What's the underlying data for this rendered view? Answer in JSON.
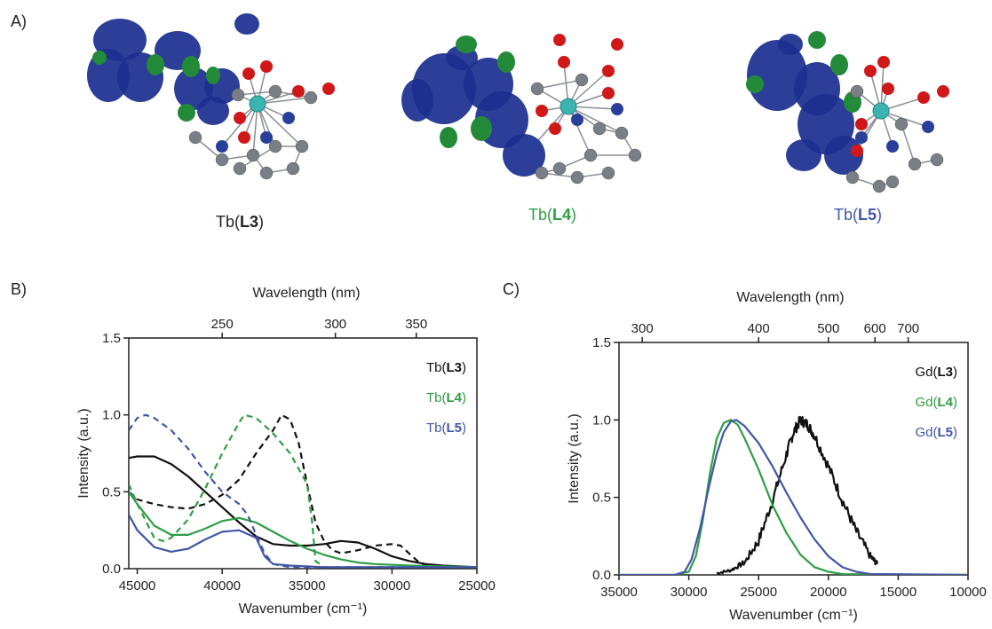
{
  "panels": {
    "a": "A)",
    "b": "B)",
    "c": "C)"
  },
  "complexes": [
    {
      "metal": "Tb(",
      "ligand": "L3",
      "close": ")",
      "color": "#222222"
    },
    {
      "metal": "Tb(",
      "ligand": "L4",
      "close": ")",
      "color": "#2e9e44"
    },
    {
      "metal": "Tb(",
      "ligand": "L5",
      "close": ")",
      "color": "#4256a8"
    }
  ],
  "colors": {
    "L3": "#111111",
    "L4": "#2e9e44",
    "L5": "#4256a8",
    "orbital_blue": "#1c2f8f",
    "orbital_green": "#238a3a",
    "teal": "#3bb3b0",
    "red": "#d01818",
    "gray": "#7a7f86"
  },
  "chart_data": [
    {
      "type": "line",
      "panel": "B)",
      "xlabel": "Wavenumber (cm⁻¹)",
      "x2label": "Wavelength (nm)",
      "ylabel": "Intensity (a.u.)",
      "xlim": [
        45500,
        25000
      ],
      "ylim": [
        0,
        1.5
      ],
      "xticks": [
        45000,
        40000,
        35000,
        30000,
        25000
      ],
      "yticks": [
        0.0,
        0.5,
        1.0,
        1.5
      ],
      "x2ticks": [
        250,
        300,
        350
      ],
      "legend": "top-right",
      "series": [
        {
          "name": "Tb(L3)",
          "color": "#111111",
          "dash": false,
          "points": [
            [
              45500,
              0.72
            ],
            [
              45000,
              0.73
            ],
            [
              44000,
              0.73
            ],
            [
              43000,
              0.68
            ],
            [
              42000,
              0.6
            ],
            [
              41000,
              0.5
            ],
            [
              40000,
              0.4
            ],
            [
              39000,
              0.3
            ],
            [
              38000,
              0.21
            ],
            [
              37000,
              0.16
            ],
            [
              36000,
              0.15
            ],
            [
              35000,
              0.15
            ],
            [
              34000,
              0.16
            ],
            [
              33000,
              0.18
            ],
            [
              32000,
              0.17
            ],
            [
              31000,
              0.13
            ],
            [
              30000,
              0.08
            ],
            [
              29000,
              0.05
            ],
            [
              28000,
              0.03
            ],
            [
              27000,
              0.02
            ],
            [
              25000,
              0.01
            ]
          ]
        },
        {
          "name": "Tb(L3)",
          "color": "#111111",
          "dash": true,
          "points": [
            [
              45500,
              0.5
            ],
            [
              45000,
              0.45
            ],
            [
              44000,
              0.42
            ],
            [
              43000,
              0.4
            ],
            [
              42000,
              0.39
            ],
            [
              41000,
              0.42
            ],
            [
              40000,
              0.48
            ],
            [
              39000,
              0.58
            ],
            [
              38000,
              0.75
            ],
            [
              37000,
              0.9
            ],
            [
              36500,
              1.0
            ],
            [
              36000,
              0.97
            ],
            [
              35500,
              0.82
            ],
            [
              35000,
              0.55
            ],
            [
              34500,
              0.3
            ],
            [
              34000,
              0.18
            ],
            [
              33500,
              0.12
            ],
            [
              33000,
              0.1
            ],
            [
              32000,
              0.12
            ],
            [
              31000,
              0.15
            ],
            [
              30000,
              0.16
            ],
            [
              29500,
              0.15
            ],
            [
              29000,
              0.1
            ],
            [
              28500,
              0.05
            ],
            [
              28000,
              0.02
            ],
            [
              27000,
              0.01
            ],
            [
              25000,
              0.01
            ]
          ]
        },
        {
          "name": "Tb(L4)",
          "color": "#2e9e44",
          "dash": false,
          "points": [
            [
              45500,
              0.5
            ],
            [
              45000,
              0.42
            ],
            [
              44000,
              0.28
            ],
            [
              43000,
              0.22
            ],
            [
              42000,
              0.22
            ],
            [
              41000,
              0.26
            ],
            [
              40000,
              0.31
            ],
            [
              39000,
              0.33
            ],
            [
              38000,
              0.3
            ],
            [
              37000,
              0.24
            ],
            [
              36000,
              0.18
            ],
            [
              35000,
              0.13
            ],
            [
              34000,
              0.09
            ],
            [
              33000,
              0.06
            ],
            [
              32000,
              0.04
            ],
            [
              31000,
              0.03
            ],
            [
              29000,
              0.02
            ],
            [
              25000,
              0.01
            ]
          ]
        },
        {
          "name": "Tb(L4)",
          "color": "#2e9e44",
          "dash": true,
          "points": [
            [
              45500,
              0.55
            ],
            [
              45000,
              0.42
            ],
            [
              44000,
              0.2
            ],
            [
              43500,
              0.18
            ],
            [
              43000,
              0.2
            ],
            [
              42000,
              0.32
            ],
            [
              41000,
              0.52
            ],
            [
              40000,
              0.75
            ],
            [
              39000,
              0.95
            ],
            [
              38700,
              1.0
            ],
            [
              38000,
              0.98
            ],
            [
              37000,
              0.88
            ],
            [
              36000,
              0.75
            ],
            [
              35000,
              0.55
            ],
            [
              34700,
              0.3
            ],
            [
              34500,
              0.05
            ],
            [
              34000,
              0.01
            ],
            [
              25000,
              0.01
            ]
          ]
        },
        {
          "name": "Tb(L5)",
          "color": "#4256a8",
          "dash": false,
          "points": [
            [
              45500,
              0.35
            ],
            [
              45000,
              0.25
            ],
            [
              44000,
              0.14
            ],
            [
              43000,
              0.11
            ],
            [
              42000,
              0.13
            ],
            [
              41000,
              0.19
            ],
            [
              40000,
              0.24
            ],
            [
              39000,
              0.25
            ],
            [
              38000,
              0.2
            ],
            [
              37500,
              0.08
            ],
            [
              37000,
              0.03
            ],
            [
              36000,
              0.02
            ],
            [
              34000,
              0.01
            ],
            [
              25000,
              0.01
            ]
          ]
        },
        {
          "name": "Tb(L5)",
          "color": "#4256a8",
          "dash": true,
          "points": [
            [
              45500,
              0.9
            ],
            [
              45000,
              0.98
            ],
            [
              44500,
              1.0
            ],
            [
              44000,
              0.98
            ],
            [
              43000,
              0.9
            ],
            [
              42000,
              0.78
            ],
            [
              41000,
              0.63
            ],
            [
              40000,
              0.5
            ],
            [
              39000,
              0.42
            ],
            [
              38500,
              0.35
            ],
            [
              38000,
              0.22
            ],
            [
              37500,
              0.1
            ],
            [
              37000,
              0.03
            ],
            [
              36000,
              0.01
            ],
            [
              25000,
              0.01
            ]
          ]
        }
      ],
      "legend_entries": [
        {
          "metal": "Tb(",
          "ligand": "L3",
          "close": ")",
          "color": "#111111"
        },
        {
          "metal": "Tb(",
          "ligand": "L4",
          "close": ")",
          "color": "#2e9e44"
        },
        {
          "metal": "Tb(",
          "ligand": "L5",
          "close": ")",
          "color": "#4256a8"
        }
      ]
    },
    {
      "type": "line",
      "panel": "C)",
      "xlabel": "Wavenumber (cm⁻¹)",
      "x2label": "Wavelength (nm)",
      "ylabel": "Intensity (a.u.)",
      "xlim": [
        35000,
        10000
      ],
      "ylim": [
        0,
        1.5
      ],
      "xticks": [
        35000,
        30000,
        25000,
        20000,
        15000,
        10000
      ],
      "yticks": [
        0.0,
        0.5,
        1.0,
        1.5
      ],
      "x2ticks": [
        300,
        400,
        500,
        600,
        700
      ],
      "legend": "top-right",
      "series": [
        {
          "name": "Gd(L3)",
          "color": "#111111",
          "dash": false,
          "noisy": true,
          "points": [
            [
              28000,
              0.01
            ],
            [
              27000,
              0.03
            ],
            [
              26000,
              0.08
            ],
            [
              25000,
              0.22
            ],
            [
              24000,
              0.48
            ],
            [
              23000,
              0.78
            ],
            [
              22500,
              0.92
            ],
            [
              22000,
              1.0
            ],
            [
              21500,
              0.97
            ],
            [
              21000,
              0.9
            ],
            [
              20000,
              0.7
            ],
            [
              19000,
              0.48
            ],
            [
              18000,
              0.28
            ],
            [
              17000,
              0.12
            ],
            [
              16500,
              0.07
            ]
          ]
        },
        {
          "name": "Gd(L4)",
          "color": "#2e9e44",
          "dash": false,
          "points": [
            [
              35000,
              0.0
            ],
            [
              31000,
              0.0
            ],
            [
              30000,
              0.02
            ],
            [
              29500,
              0.12
            ],
            [
              29000,
              0.35
            ],
            [
              28500,
              0.65
            ],
            [
              28000,
              0.88
            ],
            [
              27500,
              0.98
            ],
            [
              27000,
              1.0
            ],
            [
              26500,
              0.97
            ],
            [
              26000,
              0.88
            ],
            [
              25000,
              0.68
            ],
            [
              24000,
              0.45
            ],
            [
              23000,
              0.27
            ],
            [
              22000,
              0.13
            ],
            [
              21000,
              0.05
            ],
            [
              20000,
              0.02
            ],
            [
              19000,
              0.005
            ],
            [
              10000,
              0.0
            ]
          ]
        },
        {
          "name": "Gd(L5)",
          "color": "#4256a8",
          "dash": false,
          "points": [
            [
              35000,
              0.0
            ],
            [
              31000,
              0.0
            ],
            [
              30300,
              0.02
            ],
            [
              29800,
              0.1
            ],
            [
              29200,
              0.3
            ],
            [
              28600,
              0.55
            ],
            [
              28000,
              0.78
            ],
            [
              27500,
              0.92
            ],
            [
              27000,
              0.99
            ],
            [
              26600,
              1.0
            ],
            [
              26000,
              0.96
            ],
            [
              25000,
              0.85
            ],
            [
              24000,
              0.7
            ],
            [
              23000,
              0.53
            ],
            [
              22000,
              0.37
            ],
            [
              21000,
              0.23
            ],
            [
              20000,
              0.12
            ],
            [
              19000,
              0.05
            ],
            [
              18000,
              0.02
            ],
            [
              17000,
              0.005
            ],
            [
              10000,
              0.0
            ]
          ]
        }
      ],
      "legend_entries": [
        {
          "metal": "Gd(",
          "ligand": "L3",
          "close": ")",
          "color": "#111111"
        },
        {
          "metal": "Gd(",
          "ligand": "L4",
          "close": ")",
          "color": "#2e9e44"
        },
        {
          "metal": "Gd(",
          "ligand": "L5",
          "close": ")",
          "color": "#4256a8"
        }
      ]
    }
  ]
}
